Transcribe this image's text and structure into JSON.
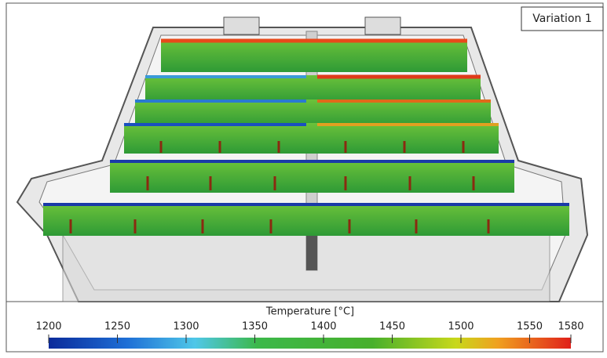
{
  "variation_label": "Variation 1",
  "colorbar": {
    "title": "Temperature [°C]",
    "lim": [
      1200,
      1580
    ],
    "ticks": [
      1200,
      1250,
      1300,
      1350,
      1400,
      1450,
      1500,
      1550,
      1580
    ]
  }
}
